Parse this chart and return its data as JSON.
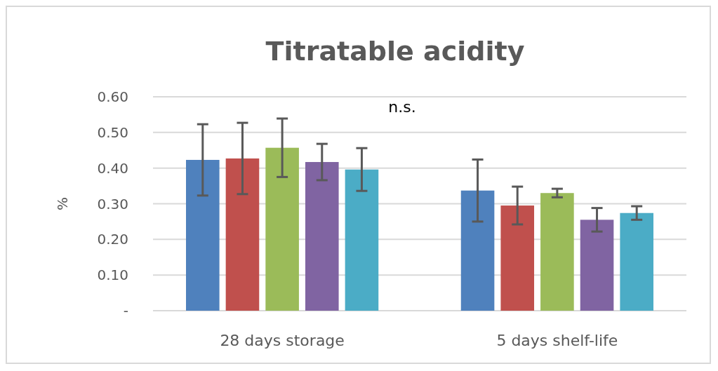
{
  "chart_data": {
    "type": "bar",
    "title": "Titratable acidity",
    "ylabel": "%",
    "categories": [
      "28 days storage",
      "5 days shelf-life"
    ],
    "series": [
      {
        "color": "#4f81bd",
        "values": [
          0.423,
          0.337
        ],
        "errors": [
          0.1,
          0.087
        ]
      },
      {
        "color": "#c0504d",
        "values": [
          0.427,
          0.295
        ],
        "errors": [
          0.1,
          0.053
        ]
      },
      {
        "color": "#9bbb59",
        "values": [
          0.457,
          0.33
        ],
        "errors": [
          0.082,
          0.012
        ]
      },
      {
        "color": "#8064a2",
        "values": [
          0.417,
          0.255
        ],
        "errors": [
          0.051,
          0.033
        ]
      },
      {
        "color": "#4bacc6",
        "values": [
          0.396,
          0.274
        ],
        "errors": [
          0.06,
          0.019
        ]
      }
    ],
    "ylim": [
      0,
      0.6
    ],
    "yticks": [
      {
        "value": 0,
        "label": "-"
      },
      {
        "value": 0.1,
        "label": "0.10"
      },
      {
        "value": 0.2,
        "label": "0.20"
      },
      {
        "value": 0.3,
        "label": "0.30"
      },
      {
        "value": 0.4,
        "label": "0.40"
      },
      {
        "value": 0.5,
        "label": "0.50"
      },
      {
        "value": 0.6,
        "label": "0.60"
      }
    ],
    "grid": "y",
    "annotations": [
      "n.s."
    ]
  }
}
